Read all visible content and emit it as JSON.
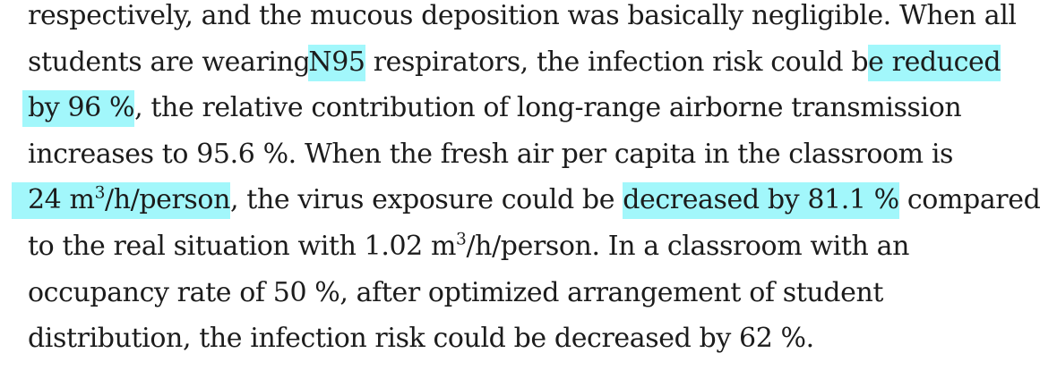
{
  "highlight_color": "#a2f7fb",
  "text_color": "#1c1c1c",
  "lines": [
    {
      "t": "respectively, and the mucous deposition was basically negligible. When all"
    },
    {
      "a": "students are wearing",
      "h": "N95",
      "b": " respirators, the infection risk could b",
      "h2": "e reduced"
    },
    {
      "h": "by 96 %",
      "b": ", the relative contribution of long-range airborne transmission"
    },
    {
      "t": "increases to 95.6 %. When the fresh air per capita in the classroom is"
    },
    {
      "h_pre": "24 m",
      "h_sup": "3",
      "h_post": "/h/person",
      "a": ", the virus exposure could be ",
      "h2": "decreased by 81.1 %",
      "b": " compared"
    },
    {
      "a": "to the real situation with 1.02 m",
      "sup": "3",
      "b": "/h/person. In a classroom with an"
    },
    {
      "t": "occupancy rate of 50 %, after optimized arrangement of student"
    },
    {
      "t": "distribution, the infection risk could be decreased by 62 %."
    }
  ]
}
